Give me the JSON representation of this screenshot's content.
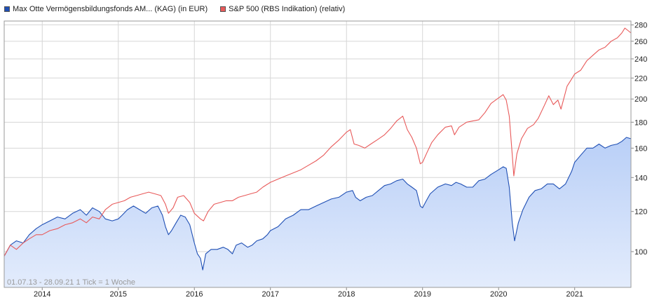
{
  "legend": [
    {
      "label": "Max Otte Vermögensbildungsfonds AM... (KAG) (in EUR)",
      "color": "#1f4fb4"
    },
    {
      "label": "S&P 500 (RBS Indikation) (relativ)",
      "color": "#e85a5a"
    }
  ],
  "info_text": "01.07.13 - 28.09.21   1 Tick = 1 Woche",
  "colors": {
    "fund": "#1f4fb4",
    "index": "#e85a5a",
    "area_top": "#b9cff7",
    "area_bottom": "#e3ecfc",
    "grid": "#d6d6d6"
  },
  "chart_data": {
    "type": "line",
    "y_scale": "log",
    "ylim": [
      85,
      285
    ],
    "xlim": [
      2013.5,
      2021.74
    ],
    "yticks": [
      100,
      120,
      140,
      160,
      180,
      200,
      220,
      240,
      260,
      280
    ],
    "xticks": [
      {
        "label": "2014",
        "value": 2014.0
      },
      {
        "label": "2015",
        "value": 2015.0
      },
      {
        "label": "2016",
        "value": 2016.0
      },
      {
        "label": "2017",
        "value": 2017.0
      },
      {
        "label": "2018",
        "value": 2018.0
      },
      {
        "label": "2019",
        "value": 2019.0
      },
      {
        "label": "2020",
        "value": 2020.0
      },
      {
        "label": "2021",
        "value": 2021.0
      }
    ],
    "grid": true,
    "legend_position": "top-left",
    "series": [
      {
        "name": "Max Otte Vermögensbildungsfonds AM... (KAG) (in EUR)",
        "role": "fund",
        "filled": true,
        "points": [
          [
            2013.5,
            98
          ],
          [
            2013.58,
            103
          ],
          [
            2013.66,
            105
          ],
          [
            2013.75,
            104
          ],
          [
            2013.83,
            108
          ],
          [
            2013.92,
            111
          ],
          [
            2014.0,
            113
          ],
          [
            2014.1,
            115
          ],
          [
            2014.2,
            117
          ],
          [
            2014.3,
            116
          ],
          [
            2014.4,
            119
          ],
          [
            2014.5,
            121
          ],
          [
            2014.58,
            118
          ],
          [
            2014.66,
            122
          ],
          [
            2014.75,
            120
          ],
          [
            2014.83,
            116
          ],
          [
            2014.92,
            115
          ],
          [
            2015.0,
            116
          ],
          [
            2015.05,
            118
          ],
          [
            2015.12,
            121
          ],
          [
            2015.2,
            123
          ],
          [
            2015.28,
            121
          ],
          [
            2015.36,
            119
          ],
          [
            2015.44,
            122
          ],
          [
            2015.52,
            123
          ],
          [
            2015.58,
            118
          ],
          [
            2015.62,
            112
          ],
          [
            2015.66,
            108
          ],
          [
            2015.7,
            110
          ],
          [
            2015.76,
            114
          ],
          [
            2015.82,
            118
          ],
          [
            2015.88,
            117
          ],
          [
            2015.94,
            113
          ],
          [
            2016.0,
            104
          ],
          [
            2016.04,
            99
          ],
          [
            2016.08,
            97
          ],
          [
            2016.11,
            92
          ],
          [
            2016.15,
            99
          ],
          [
            2016.22,
            101
          ],
          [
            2016.3,
            101
          ],
          [
            2016.38,
            102
          ],
          [
            2016.44,
            101
          ],
          [
            2016.5,
            99
          ],
          [
            2016.55,
            103
          ],
          [
            2016.62,
            104
          ],
          [
            2016.7,
            102
          ],
          [
            2016.76,
            103
          ],
          [
            2016.82,
            105
          ],
          [
            2016.9,
            106
          ],
          [
            2016.96,
            108
          ],
          [
            2017.0,
            110
          ],
          [
            2017.1,
            112
          ],
          [
            2017.2,
            116
          ],
          [
            2017.3,
            118
          ],
          [
            2017.4,
            121
          ],
          [
            2017.5,
            121
          ],
          [
            2017.6,
            123
          ],
          [
            2017.7,
            125
          ],
          [
            2017.8,
            127
          ],
          [
            2017.9,
            128
          ],
          [
            2018.0,
            131
          ],
          [
            2018.08,
            132
          ],
          [
            2018.12,
            128
          ],
          [
            2018.18,
            126
          ],
          [
            2018.26,
            128
          ],
          [
            2018.34,
            129
          ],
          [
            2018.42,
            132
          ],
          [
            2018.5,
            135
          ],
          [
            2018.58,
            136
          ],
          [
            2018.66,
            138
          ],
          [
            2018.74,
            139
          ],
          [
            2018.8,
            136
          ],
          [
            2018.86,
            134
          ],
          [
            2018.92,
            132
          ],
          [
            2018.97,
            123
          ],
          [
            2019.0,
            122
          ],
          [
            2019.05,
            126
          ],
          [
            2019.1,
            130
          ],
          [
            2019.2,
            134
          ],
          [
            2019.3,
            136
          ],
          [
            2019.38,
            135
          ],
          [
            2019.44,
            137
          ],
          [
            2019.5,
            136
          ],
          [
            2019.58,
            134
          ],
          [
            2019.66,
            134
          ],
          [
            2019.74,
            138
          ],
          [
            2019.82,
            139
          ],
          [
            2019.9,
            142
          ],
          [
            2020.0,
            145
          ],
          [
            2020.06,
            147
          ],
          [
            2020.1,
            146
          ],
          [
            2020.14,
            134
          ],
          [
            2020.18,
            114
          ],
          [
            2020.21,
            105
          ],
          [
            2020.26,
            114
          ],
          [
            2020.32,
            121
          ],
          [
            2020.4,
            128
          ],
          [
            2020.48,
            132
          ],
          [
            2020.56,
            133
          ],
          [
            2020.64,
            136
          ],
          [
            2020.72,
            136
          ],
          [
            2020.8,
            133
          ],
          [
            2020.88,
            136
          ],
          [
            2020.96,
            144
          ],
          [
            2021.0,
            150
          ],
          [
            2021.08,
            155
          ],
          [
            2021.16,
            160
          ],
          [
            2021.24,
            160
          ],
          [
            2021.32,
            163
          ],
          [
            2021.4,
            160
          ],
          [
            2021.48,
            162
          ],
          [
            2021.56,
            163
          ],
          [
            2021.62,
            165
          ],
          [
            2021.68,
            168
          ],
          [
            2021.74,
            167
          ]
        ]
      },
      {
        "name": "S&P 500 (RBS Indikation) (relativ)",
        "role": "index",
        "filled": false,
        "points": [
          [
            2013.5,
            98
          ],
          [
            2013.58,
            103
          ],
          [
            2013.66,
            101
          ],
          [
            2013.75,
            104
          ],
          [
            2013.83,
            106
          ],
          [
            2013.92,
            108
          ],
          [
            2014.0,
            108
          ],
          [
            2014.1,
            110
          ],
          [
            2014.2,
            111
          ],
          [
            2014.3,
            113
          ],
          [
            2014.4,
            114
          ],
          [
            2014.5,
            116
          ],
          [
            2014.58,
            114
          ],
          [
            2014.66,
            117
          ],
          [
            2014.75,
            116
          ],
          [
            2014.83,
            121
          ],
          [
            2014.92,
            124
          ],
          [
            2015.0,
            125
          ],
          [
            2015.08,
            126
          ],
          [
            2015.16,
            128
          ],
          [
            2015.24,
            129
          ],
          [
            2015.32,
            130
          ],
          [
            2015.4,
            131
          ],
          [
            2015.48,
            130
          ],
          [
            2015.56,
            129
          ],
          [
            2015.62,
            124
          ],
          [
            2015.66,
            119
          ],
          [
            2015.72,
            122
          ],
          [
            2015.78,
            128
          ],
          [
            2015.86,
            129
          ],
          [
            2015.94,
            125
          ],
          [
            2016.0,
            119
          ],
          [
            2016.08,
            116
          ],
          [
            2016.12,
            115
          ],
          [
            2016.18,
            120
          ],
          [
            2016.26,
            124
          ],
          [
            2016.34,
            125
          ],
          [
            2016.42,
            126
          ],
          [
            2016.5,
            126
          ],
          [
            2016.58,
            128
          ],
          [
            2016.66,
            129
          ],
          [
            2016.74,
            130
          ],
          [
            2016.82,
            131
          ],
          [
            2016.9,
            134
          ],
          [
            2017.0,
            137
          ],
          [
            2017.1,
            139
          ],
          [
            2017.2,
            141
          ],
          [
            2017.3,
            143
          ],
          [
            2017.4,
            145
          ],
          [
            2017.5,
            148
          ],
          [
            2017.6,
            151
          ],
          [
            2017.7,
            155
          ],
          [
            2017.8,
            161
          ],
          [
            2017.9,
            166
          ],
          [
            2018.0,
            172
          ],
          [
            2018.05,
            174
          ],
          [
            2018.1,
            163
          ],
          [
            2018.16,
            162
          ],
          [
            2018.24,
            160
          ],
          [
            2018.32,
            163
          ],
          [
            2018.4,
            166
          ],
          [
            2018.5,
            170
          ],
          [
            2018.58,
            175
          ],
          [
            2018.66,
            181
          ],
          [
            2018.74,
            185
          ],
          [
            2018.8,
            174
          ],
          [
            2018.86,
            168
          ],
          [
            2018.92,
            160
          ],
          [
            2018.97,
            149
          ],
          [
            2019.0,
            150
          ],
          [
            2019.06,
            157
          ],
          [
            2019.12,
            164
          ],
          [
            2019.2,
            170
          ],
          [
            2019.3,
            176
          ],
          [
            2019.38,
            177
          ],
          [
            2019.42,
            170
          ],
          [
            2019.48,
            176
          ],
          [
            2019.58,
            180
          ],
          [
            2019.66,
            181
          ],
          [
            2019.74,
            182
          ],
          [
            2019.82,
            188
          ],
          [
            2019.9,
            196
          ],
          [
            2020.0,
            201
          ],
          [
            2020.06,
            204
          ],
          [
            2020.1,
            199
          ],
          [
            2020.14,
            185
          ],
          [
            2020.18,
            155
          ],
          [
            2020.2,
            141
          ],
          [
            2020.24,
            156
          ],
          [
            2020.3,
            167
          ],
          [
            2020.38,
            175
          ],
          [
            2020.46,
            178
          ],
          [
            2020.52,
            183
          ],
          [
            2020.6,
            194
          ],
          [
            2020.66,
            203
          ],
          [
            2020.72,
            195
          ],
          [
            2020.78,
            199
          ],
          [
            2020.82,
            191
          ],
          [
            2020.9,
            212
          ],
          [
            2020.96,
            219
          ],
          [
            2021.0,
            224
          ],
          [
            2021.08,
            228
          ],
          [
            2021.16,
            238
          ],
          [
            2021.24,
            244
          ],
          [
            2021.32,
            250
          ],
          [
            2021.4,
            253
          ],
          [
            2021.48,
            260
          ],
          [
            2021.56,
            264
          ],
          [
            2021.62,
            270
          ],
          [
            2021.66,
            276
          ],
          [
            2021.7,
            273
          ],
          [
            2021.74,
            270
          ]
        ]
      }
    ]
  }
}
